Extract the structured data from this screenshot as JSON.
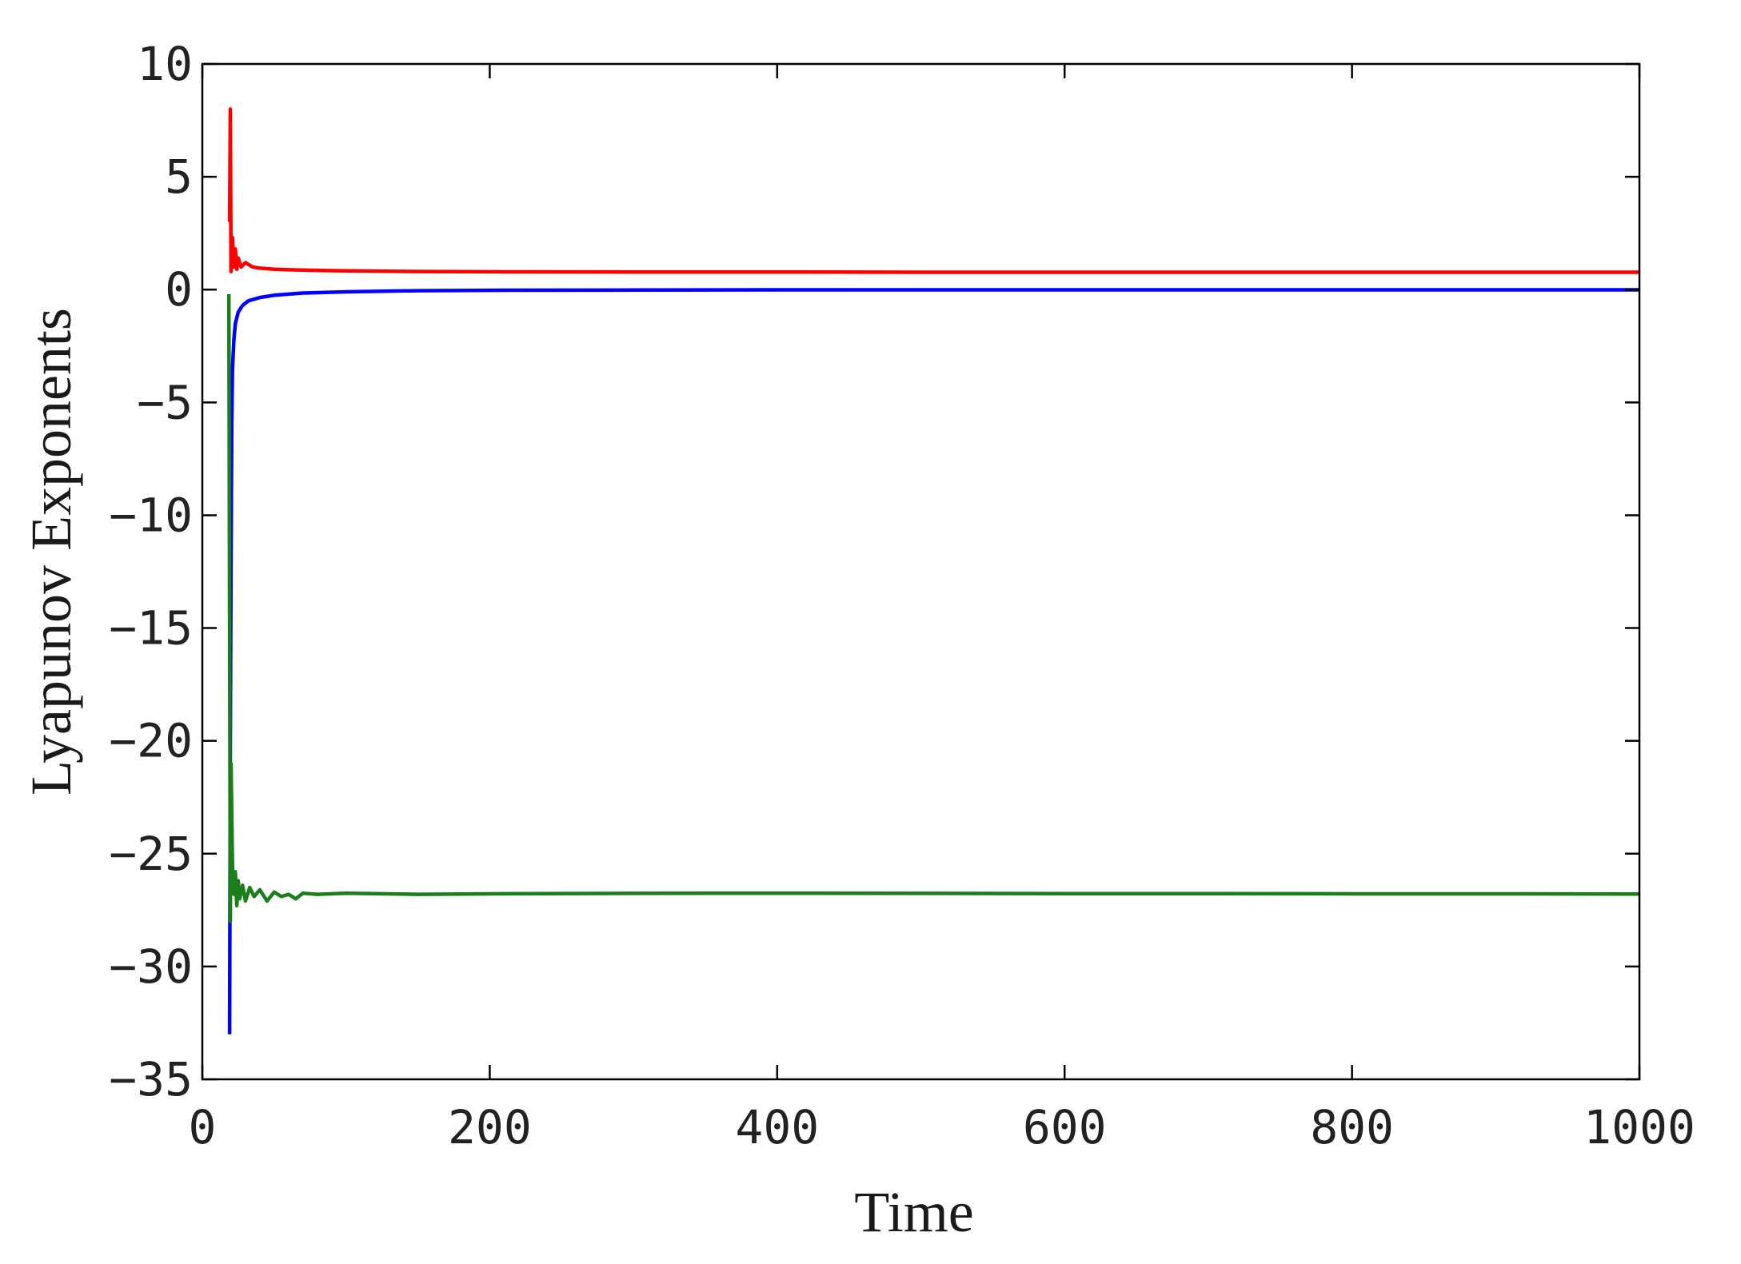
{
  "chart_data": {
    "type": "line",
    "title": "",
    "xlabel": "Time",
    "ylabel": "Lyapunov Exponents",
    "xlim": [
      0,
      1000
    ],
    "ylim": [
      -35,
      10
    ],
    "xticks": [
      0,
      200,
      400,
      600,
      800,
      1000
    ],
    "yticks": [
      10,
      5,
      0,
      -5,
      -10,
      -15,
      -20,
      -25,
      -30,
      -35
    ],
    "xtick_labels": [
      "0",
      "200",
      "400",
      "600",
      "800",
      "1000"
    ],
    "ytick_labels": [
      "10",
      "5",
      "0",
      "−5",
      "−10",
      "−15",
      "−20",
      "−25",
      "−30",
      "−35"
    ],
    "grid": false,
    "legend": "none",
    "series": [
      {
        "color": "#ff0000",
        "x": [
          19,
          19.5,
          20,
          21,
          22,
          23,
          24,
          25,
          27,
          30,
          35,
          40,
          50,
          60,
          80,
          100,
          150,
          200,
          300,
          400,
          500,
          600,
          700,
          800,
          900,
          1000
        ],
        "y": [
          3,
          8,
          0.8,
          2.3,
          1.0,
          1.8,
          0.9,
          1.4,
          1.0,
          1.2,
          1.0,
          0.95,
          0.9,
          0.88,
          0.85,
          0.83,
          0.8,
          0.79,
          0.78,
          0.78,
          0.77,
          0.77,
          0.77,
          0.77,
          0.77,
          0.77
        ]
      },
      {
        "color": "#0000ff",
        "x": [
          19,
          19.5,
          20,
          20.5,
          21,
          22,
          23,
          25,
          28,
          32,
          40,
          50,
          70,
          100,
          150,
          200,
          300,
          400,
          500,
          600,
          700,
          800,
          900,
          1000
        ],
        "y": [
          -33,
          -20,
          -12,
          -6,
          -3.5,
          -2.2,
          -1.5,
          -1.0,
          -0.7,
          -0.5,
          -0.35,
          -0.25,
          -0.15,
          -0.1,
          -0.05,
          -0.03,
          -0.02,
          -0.01,
          -0.01,
          -0.01,
          -0.01,
          -0.01,
          -0.01,
          -0.01
        ]
      },
      {
        "color": "#1a7f1a",
        "x": [
          18.5,
          19,
          19.5,
          20,
          21,
          22,
          23,
          24,
          25,
          26,
          28,
          30,
          33,
          36,
          40,
          45,
          50,
          55,
          60,
          65,
          70,
          80,
          100,
          150,
          200,
          300,
          400,
          500,
          600,
          700,
          800,
          900,
          1000
        ],
        "y": [
          -0.2,
          -15,
          -28,
          -21,
          -25.5,
          -26.8,
          -25.8,
          -27.3,
          -26.2,
          -27.0,
          -26.4,
          -27.1,
          -26.5,
          -26.9,
          -26.6,
          -27.1,
          -26.7,
          -26.9,
          -26.8,
          -27.0,
          -26.75,
          -26.8,
          -26.75,
          -26.8,
          -26.78,
          -26.76,
          -26.75,
          -26.76,
          -26.77,
          -26.77,
          -26.78,
          -26.78,
          -26.79
        ]
      }
    ]
  }
}
